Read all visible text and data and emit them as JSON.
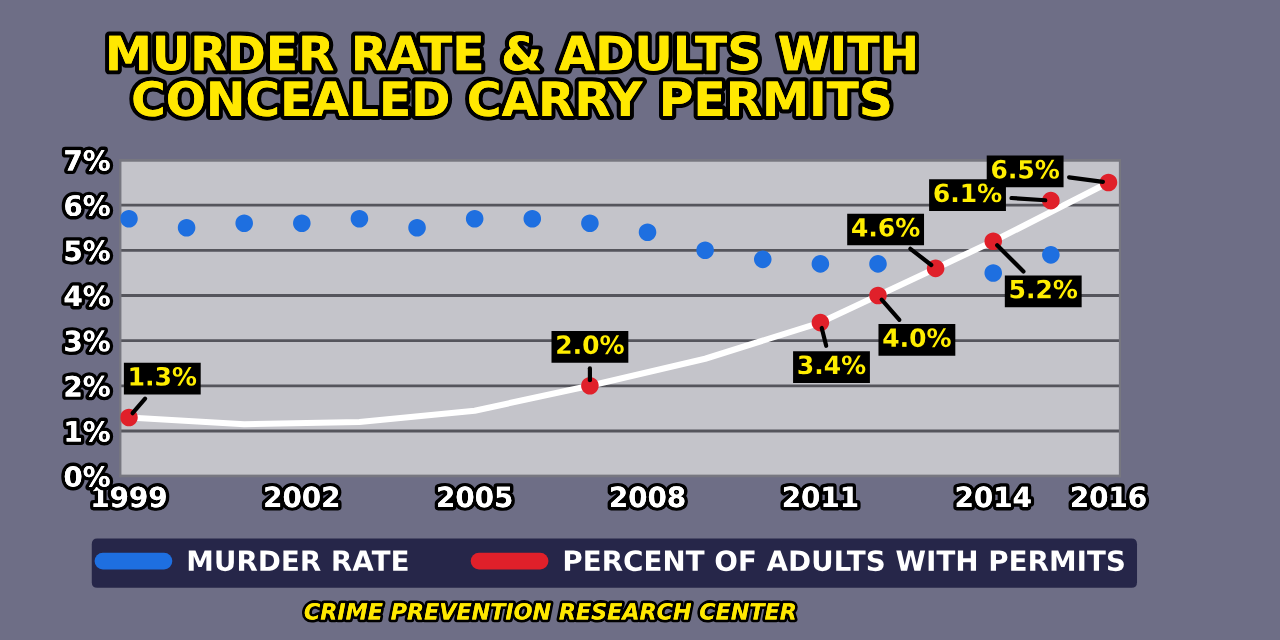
{
  "chart_data": {
    "type": "scatter",
    "title": "MURDER RATE & ADULTS WITH\nCONCEALED CARRY PERMITS",
    "series": [
      {
        "name": "MURDER RATE",
        "color": "#1e6fe0",
        "x": [
          1999,
          2000,
          2001,
          2002,
          2003,
          2004,
          2005,
          2006,
          2007,
          2008,
          2009,
          2010,
          2011,
          2012,
          2013,
          2014,
          2015
        ],
        "values": [
          5.7,
          5.5,
          5.6,
          5.6,
          5.7,
          5.5,
          5.7,
          5.7,
          5.6,
          5.4,
          5.0,
          4.8,
          4.7,
          4.7,
          null,
          4.5,
          4.9
        ]
      },
      {
        "type": "line",
        "color": "#ffffff",
        "marker": "none",
        "x": [
          1999,
          2001,
          2003,
          2005,
          2007,
          2009,
          2011,
          2013,
          2014,
          2016
        ],
        "values": [
          1.3,
          1.15,
          1.2,
          1.45,
          2.0,
          2.6,
          3.4,
          4.6,
          5.2,
          6.5
        ]
      },
      {
        "name": "PERCENT OF ADULTS WITH PERMITS",
        "color": "#e0202a",
        "x": [
          1999,
          2007,
          2011,
          2012,
          2013,
          2014,
          2015,
          2016
        ],
        "values": [
          1.3,
          2.0,
          3.4,
          4.0,
          4.6,
          5.2,
          6.1,
          6.5
        ],
        "value_labels": [
          "1.3%",
          "2.0%",
          "3.4%",
          "4.0%",
          "4.6%",
          "5.2%",
          "6.1%",
          "6.5%"
        ]
      }
    ],
    "xlim": [
      1998.85,
      2016.2
    ],
    "xticks": [
      1999,
      2002,
      2005,
      2008,
      2011,
      2014,
      2016
    ],
    "ylim": [
      0,
      7
    ],
    "yticks": [
      {
        "value": 0,
        "label": "0%"
      },
      {
        "value": 1,
        "label": "1%"
      },
      {
        "value": 2,
        "label": "2%"
      },
      {
        "value": 3,
        "label": "3%"
      },
      {
        "value": 4,
        "label": "4%"
      },
      {
        "value": 5,
        "label": "5%"
      },
      {
        "value": 6,
        "label": "6%"
      },
      {
        "value": 7,
        "label": "7%"
      }
    ],
    "grid": "y",
    "marker": "circle",
    "legend": "bottom",
    "annotations": [
      "CRIME PREVENTION RESEARCH CENTER"
    ]
  }
}
